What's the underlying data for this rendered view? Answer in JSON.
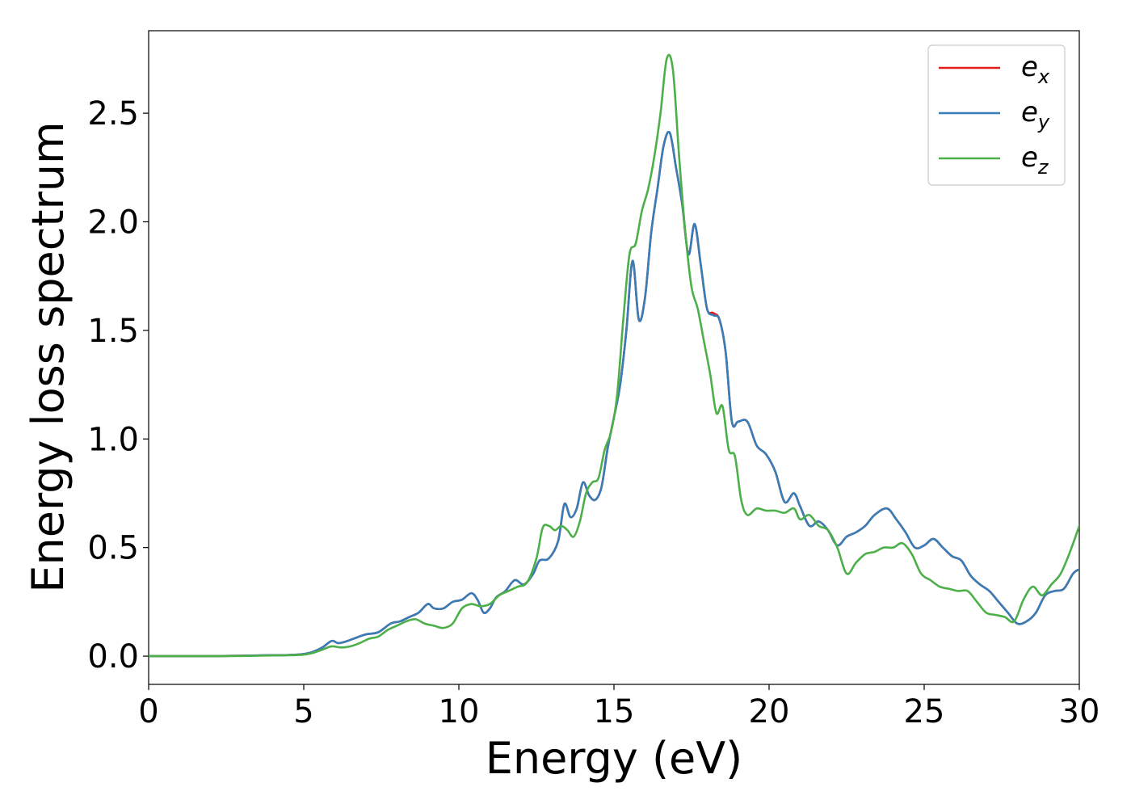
{
  "chart_data": {
    "type": "line",
    "title": "",
    "xlabel": "Energy (eV)",
    "ylabel": "Energy loss spectrum",
    "xlim": [
      0,
      30
    ],
    "ylim": [
      -0.13,
      2.88
    ],
    "xticks": [
      0,
      5,
      10,
      15,
      20,
      25,
      30
    ],
    "xtick_labels": [
      "0",
      "5",
      "10",
      "15",
      "20",
      "25",
      "30"
    ],
    "yticks": [
      0.0,
      0.5,
      1.0,
      1.5,
      2.0,
      2.5
    ],
    "ytick_labels": [
      "0.0",
      "0.5",
      "1.0",
      "1.5",
      "2.0",
      "2.5"
    ],
    "grid": false,
    "legend_position": "top-right",
    "series": [
      {
        "name": "e_x",
        "legend_main": "e",
        "legend_sub": "x",
        "color": "#e41a1c",
        "x": [
          0,
          1,
          2,
          3,
          4,
          4.5,
          5,
          5.3,
          5.6,
          5.9,
          6.1,
          6.3,
          6.6,
          7,
          7.4,
          7.8,
          8.1,
          8.4,
          8.7,
          9,
          9.2,
          9.5,
          9.8,
          10.1,
          10.4,
          10.6,
          10.8,
          11,
          11.2,
          11.5,
          11.8,
          12.1,
          12.4,
          12.6,
          12.9,
          13.2,
          13.4,
          13.6,
          13.8,
          14,
          14.2,
          14.4,
          14.6,
          14.8,
          15,
          15.2,
          15.4,
          15.6,
          15.8,
          16,
          16.2,
          16.4,
          16.6,
          16.8,
          17,
          17.2,
          17.4,
          17.6,
          17.8,
          18,
          18.2,
          18.4,
          18.6,
          18.8,
          19,
          19.3,
          19.6,
          19.9,
          20.2,
          20.5,
          20.8,
          21,
          21.3,
          21.6,
          21.9,
          22.2,
          22.5,
          22.8,
          23.1,
          23.4,
          23.8,
          24.1,
          24.4,
          24.7,
          25,
          25.3,
          25.6,
          25.9,
          26.2,
          26.5,
          26.8,
          27.1,
          27.4,
          27.7,
          28,
          28.3,
          28.6,
          28.9,
          29.2,
          29.5,
          29.8,
          30
        ],
        "values": [
          0.0,
          0.0,
          0.0,
          0.002,
          0.004,
          0.005,
          0.01,
          0.02,
          0.04,
          0.07,
          0.06,
          0.065,
          0.08,
          0.1,
          0.11,
          0.15,
          0.16,
          0.18,
          0.2,
          0.24,
          0.22,
          0.22,
          0.25,
          0.26,
          0.29,
          0.26,
          0.2,
          0.22,
          0.27,
          0.3,
          0.35,
          0.33,
          0.38,
          0.44,
          0.45,
          0.53,
          0.7,
          0.64,
          0.68,
          0.8,
          0.74,
          0.72,
          0.78,
          0.96,
          1.1,
          1.25,
          1.5,
          1.82,
          1.55,
          1.65,
          1.95,
          2.15,
          2.35,
          2.41,
          2.25,
          2.08,
          1.85,
          1.99,
          1.8,
          1.6,
          1.58,
          1.55,
          1.4,
          1.08,
          1.08,
          1.08,
          0.97,
          0.93,
          0.85,
          0.71,
          0.75,
          0.69,
          0.6,
          0.62,
          0.58,
          0.51,
          0.55,
          0.57,
          0.6,
          0.65,
          0.68,
          0.63,
          0.57,
          0.5,
          0.51,
          0.54,
          0.5,
          0.46,
          0.44,
          0.37,
          0.33,
          0.3,
          0.25,
          0.2,
          0.15,
          0.16,
          0.2,
          0.28,
          0.3,
          0.31,
          0.38,
          0.4
        ]
      },
      {
        "name": "e_y",
        "legend_main": "e",
        "legend_sub": "y",
        "color": "#377eb8",
        "x": [
          0,
          1,
          2,
          3,
          4,
          4.5,
          5,
          5.3,
          5.6,
          5.9,
          6.1,
          6.3,
          6.6,
          7,
          7.4,
          7.8,
          8.1,
          8.4,
          8.7,
          9,
          9.2,
          9.5,
          9.8,
          10.1,
          10.4,
          10.6,
          10.8,
          11,
          11.2,
          11.5,
          11.8,
          12.1,
          12.4,
          12.6,
          12.9,
          13.2,
          13.4,
          13.6,
          13.8,
          14,
          14.2,
          14.4,
          14.6,
          14.8,
          15,
          15.2,
          15.4,
          15.6,
          15.8,
          16,
          16.2,
          16.4,
          16.6,
          16.8,
          17,
          17.2,
          17.4,
          17.6,
          17.8,
          18,
          18.2,
          18.4,
          18.6,
          18.8,
          19,
          19.3,
          19.6,
          19.9,
          20.2,
          20.5,
          20.8,
          21,
          21.3,
          21.6,
          21.9,
          22.2,
          22.5,
          22.8,
          23.1,
          23.4,
          23.8,
          24.1,
          24.4,
          24.7,
          25,
          25.3,
          25.6,
          25.9,
          26.2,
          26.5,
          26.8,
          27.1,
          27.4,
          27.7,
          28,
          28.3,
          28.6,
          28.9,
          29.2,
          29.5,
          29.8,
          30
        ],
        "values": [
          0.0,
          0.0,
          0.0,
          0.002,
          0.004,
          0.005,
          0.01,
          0.02,
          0.04,
          0.07,
          0.06,
          0.065,
          0.08,
          0.1,
          0.11,
          0.15,
          0.16,
          0.18,
          0.2,
          0.24,
          0.22,
          0.22,
          0.25,
          0.26,
          0.29,
          0.26,
          0.2,
          0.22,
          0.27,
          0.3,
          0.35,
          0.33,
          0.38,
          0.44,
          0.45,
          0.53,
          0.7,
          0.64,
          0.68,
          0.8,
          0.74,
          0.72,
          0.78,
          0.96,
          1.1,
          1.25,
          1.5,
          1.82,
          1.55,
          1.65,
          1.95,
          2.15,
          2.35,
          2.41,
          2.25,
          2.08,
          1.85,
          1.99,
          1.8,
          1.6,
          1.57,
          1.55,
          1.4,
          1.08,
          1.08,
          1.08,
          0.97,
          0.93,
          0.85,
          0.71,
          0.75,
          0.69,
          0.6,
          0.62,
          0.58,
          0.51,
          0.55,
          0.57,
          0.6,
          0.65,
          0.68,
          0.63,
          0.57,
          0.5,
          0.51,
          0.54,
          0.5,
          0.46,
          0.44,
          0.37,
          0.33,
          0.3,
          0.25,
          0.2,
          0.15,
          0.16,
          0.2,
          0.28,
          0.3,
          0.31,
          0.38,
          0.4
        ]
      },
      {
        "name": "e_z",
        "legend_main": "e",
        "legend_sub": "z",
        "color": "#4daf4a",
        "x": [
          0,
          1,
          2,
          3,
          4,
          4.5,
          5,
          5.3,
          5.6,
          5.9,
          6.2,
          6.5,
          6.8,
          7.1,
          7.4,
          7.7,
          8,
          8.3,
          8.6,
          8.9,
          9.2,
          9.5,
          9.8,
          10.1,
          10.4,
          10.7,
          11,
          11.3,
          11.6,
          11.9,
          12.2,
          12.5,
          12.7,
          12.9,
          13.1,
          13.3,
          13.5,
          13.7,
          13.9,
          14.1,
          14.3,
          14.5,
          14.7,
          14.9,
          15.1,
          15.3,
          15.5,
          15.7,
          15.9,
          16.1,
          16.3,
          16.5,
          16.7,
          16.9,
          17.1,
          17.3,
          17.5,
          17.7,
          17.9,
          18.1,
          18.3,
          18.5,
          18.7,
          18.9,
          19.1,
          19.3,
          19.6,
          19.9,
          20.2,
          20.5,
          20.8,
          21,
          21.3,
          21.6,
          21.9,
          22.2,
          22.5,
          22.8,
          23.1,
          23.4,
          23.7,
          24,
          24.3,
          24.6,
          24.9,
          25.2,
          25.5,
          25.8,
          26.1,
          26.4,
          26.7,
          27,
          27.3,
          27.6,
          27.9,
          28.2,
          28.5,
          28.8,
          29.1,
          29.4,
          29.7,
          30
        ],
        "values": [
          0.0,
          0.0,
          0.0,
          0.001,
          0.003,
          0.004,
          0.007,
          0.015,
          0.03,
          0.045,
          0.04,
          0.045,
          0.06,
          0.08,
          0.09,
          0.12,
          0.14,
          0.16,
          0.17,
          0.15,
          0.14,
          0.13,
          0.15,
          0.22,
          0.24,
          0.23,
          0.24,
          0.28,
          0.3,
          0.32,
          0.34,
          0.45,
          0.59,
          0.6,
          0.58,
          0.6,
          0.58,
          0.55,
          0.62,
          0.75,
          0.8,
          0.82,
          0.95,
          1.03,
          1.2,
          1.55,
          1.85,
          1.9,
          2.05,
          2.15,
          2.3,
          2.5,
          2.75,
          2.7,
          2.3,
          1.95,
          1.7,
          1.6,
          1.45,
          1.3,
          1.12,
          1.15,
          0.95,
          0.92,
          0.72,
          0.65,
          0.68,
          0.67,
          0.67,
          0.66,
          0.68,
          0.63,
          0.65,
          0.6,
          0.58,
          0.5,
          0.38,
          0.43,
          0.47,
          0.48,
          0.5,
          0.5,
          0.52,
          0.47,
          0.38,
          0.35,
          0.32,
          0.31,
          0.3,
          0.3,
          0.25,
          0.2,
          0.19,
          0.18,
          0.16,
          0.26,
          0.32,
          0.28,
          0.33,
          0.38,
          0.48,
          0.6
        ]
      }
    ]
  }
}
